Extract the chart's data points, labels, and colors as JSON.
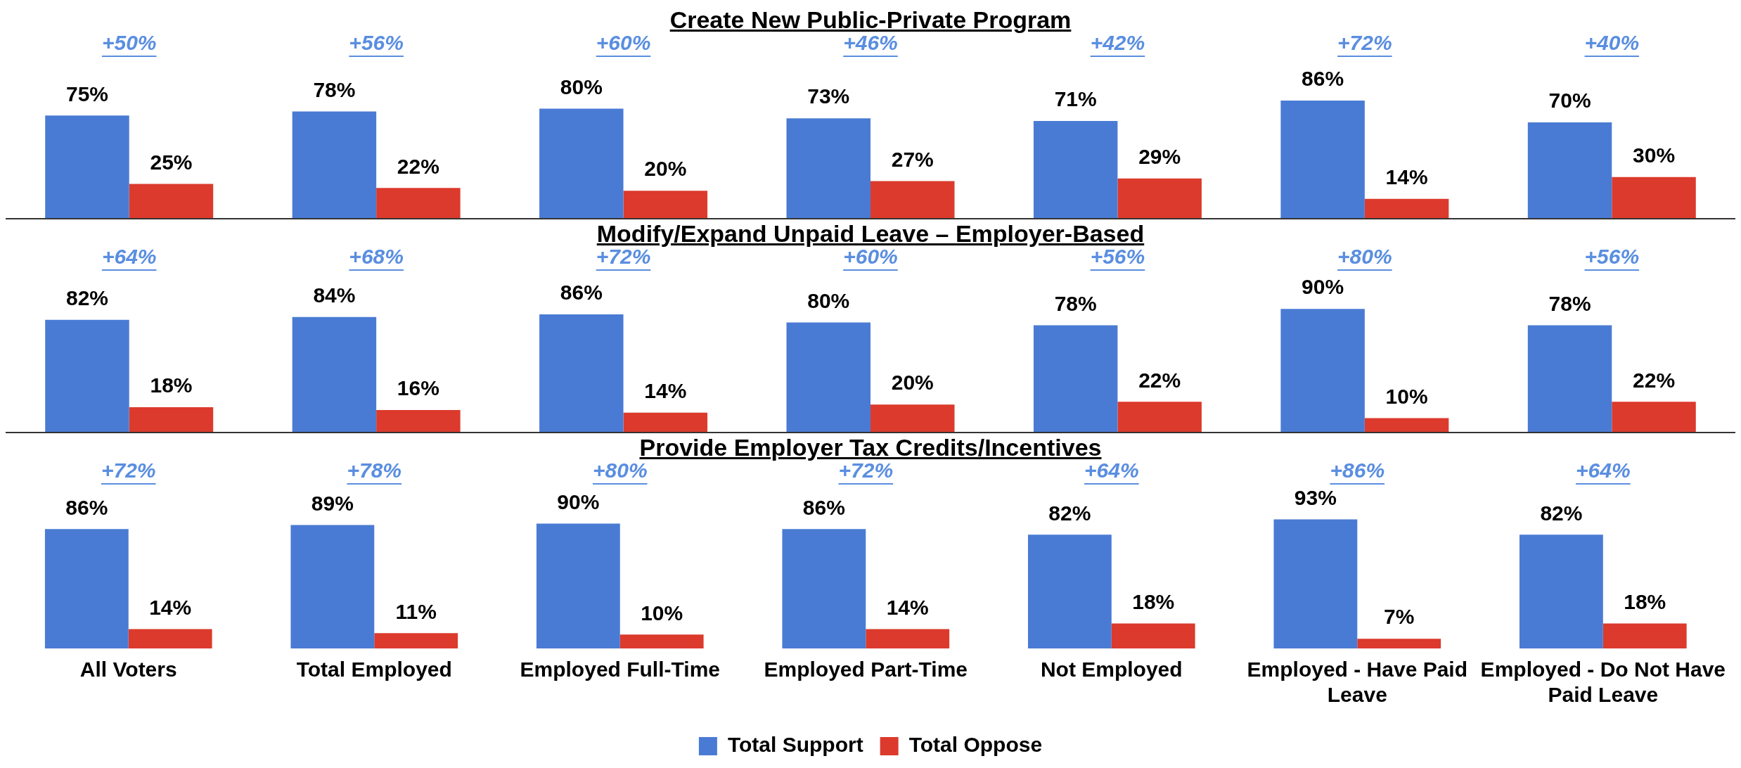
{
  "chart_data": [
    {
      "type": "bar",
      "title": "Create New Public-Private Program",
      "categories": [
        null,
        null,
        null,
        null,
        null,
        null,
        null
      ],
      "tick_labels": false,
      "legend": false,
      "grid": false,
      "series": [
        {
          "color": "#4a7bd4",
          "values": [
            75,
            78,
            80,
            73,
            71,
            86,
            70
          ],
          "value_labels": [
            "75%",
            "78%",
            "80%",
            "73%",
            "71%",
            "86%",
            "70%"
          ]
        },
        {
          "color": "#dc3a2c",
          "values": [
            25,
            22,
            20,
            27,
            29,
            14,
            30
          ],
          "value_labels": [
            "25%",
            "22%",
            "20%",
            "27%",
            "29%",
            "14%",
            "30%"
          ]
        }
      ],
      "annotations": [
        "+50%",
        "+56%",
        "+60%",
        "+46%",
        "+42%",
        "+72%",
        "+40%"
      ]
    },
    {
      "type": "bar",
      "title": "Modify/Expand Unpaid Leave – Employer-Based",
      "categories": [
        null,
        null,
        null,
        null,
        null,
        null,
        null
      ],
      "tick_labels": false,
      "legend": false,
      "grid": false,
      "series": [
        {
          "color": "#4a7bd4",
          "values": [
            82,
            84,
            86,
            80,
            78,
            90,
            78
          ],
          "value_labels": [
            "82%",
            "84%",
            "86%",
            "80%",
            "78%",
            "90%",
            "78%"
          ]
        },
        {
          "color": "#dc3a2c",
          "values": [
            18,
            16,
            14,
            20,
            22,
            10,
            22
          ],
          "value_labels": [
            "18%",
            "16%",
            "14%",
            "20%",
            "22%",
            "10%",
            "22%"
          ]
        }
      ],
      "annotations": [
        "+64%",
        "+68%",
        "+72%",
        "+60%",
        "+56%",
        "+80%",
        "+56%"
      ]
    },
    {
      "type": "bar",
      "title": "Provide Employer Tax Credits/Incentives",
      "categories": [
        "All Voters",
        "Total Employed",
        "Employed Full-Time",
        "Employed Part-Time",
        "Not Employed",
        "Employed - Have Paid Leave",
        "Employed - Do Not Have Paid Leave"
      ],
      "tick_labels": "x",
      "legend": "bottom",
      "grid": false,
      "series": [
        {
          "name": "Total Support",
          "color": "#4a7bd4",
          "values": [
            86,
            89,
            90,
            86,
            82,
            93,
            82
          ],
          "value_labels": [
            "86%",
            "89%",
            "90%",
            "86%",
            "82%",
            "93%",
            "82%"
          ]
        },
        {
          "name": "Total Oppose",
          "color": "#dc3a2c",
          "values": [
            14,
            11,
            10,
            14,
            18,
            7,
            18
          ],
          "value_labels": [
            "14%",
            "11%",
            "10%",
            "14%",
            "18%",
            "7%",
            "18%"
          ]
        }
      ],
      "annotations": [
        "+72%",
        "+78%",
        "+80%",
        "+72%",
        "+64%",
        "+86%",
        "+64%"
      ]
    }
  ]
}
